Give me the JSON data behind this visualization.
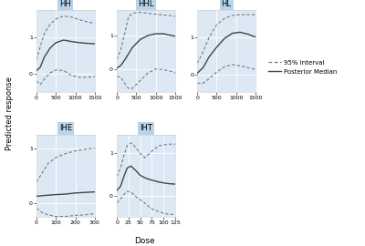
{
  "panels": [
    {
      "title": "HH",
      "xmin": 0,
      "xmax": 1500,
      "xticks": [
        0,
        500,
        1000,
        1500
      ],
      "ymin": -0.5,
      "ymax": 1.75,
      "yticks": [
        0.0,
        1.0
      ],
      "median_x": [
        0,
        100,
        200,
        350,
        500,
        700,
        900,
        1100,
        1300,
        1500
      ],
      "median_y": [
        0.08,
        0.18,
        0.45,
        0.7,
        0.85,
        0.92,
        0.88,
        0.85,
        0.83,
        0.82
      ],
      "upper_x": [
        0,
        100,
        200,
        350,
        500,
        700,
        900,
        1100,
        1300,
        1500
      ],
      "upper_y": [
        0.38,
        0.75,
        1.1,
        1.35,
        1.5,
        1.58,
        1.55,
        1.48,
        1.42,
        1.38
      ],
      "lower_x": [
        0,
        100,
        200,
        350,
        500,
        700,
        900,
        1100,
        1300,
        1500
      ],
      "lower_y": [
        -0.2,
        -0.3,
        -0.15,
        0.02,
        0.1,
        0.08,
        -0.05,
        -0.1,
        -0.1,
        -0.08
      ]
    },
    {
      "title": "HHL",
      "xmin": 0,
      "xmax": 1500,
      "xticks": [
        0,
        500,
        1000,
        1500
      ],
      "ymin": -0.65,
      "ymax": 1.75,
      "yticks": [
        0.0,
        1.0
      ],
      "median_x": [
        0,
        100,
        200,
        400,
        600,
        800,
        1000,
        1200,
        1400,
        1500
      ],
      "median_y": [
        0.05,
        0.12,
        0.28,
        0.65,
        0.88,
        1.0,
        1.05,
        1.05,
        1.0,
        0.98
      ],
      "upper_x": [
        0,
        100,
        200,
        300,
        400,
        600,
        800,
        1000,
        1200,
        1400,
        1500
      ],
      "upper_y": [
        0.3,
        0.58,
        1.05,
        1.55,
        1.65,
        1.68,
        1.65,
        1.62,
        1.6,
        1.58,
        1.56
      ],
      "lower_x": [
        0,
        100,
        200,
        300,
        400,
        600,
        800,
        1000,
        1200,
        1400,
        1500
      ],
      "lower_y": [
        -0.2,
        -0.22,
        -0.4,
        -0.55,
        -0.55,
        -0.32,
        -0.1,
        0.02,
        0.0,
        -0.05,
        -0.1
      ]
    },
    {
      "title": "HL",
      "xmin": 0,
      "xmax": 1500,
      "xticks": [
        0,
        500,
        1000,
        1500
      ],
      "ymin": -0.45,
      "ymax": 1.75,
      "yticks": [
        0.0,
        1.0
      ],
      "median_x": [
        0,
        150,
        300,
        500,
        700,
        900,
        1100,
        1300,
        1500
      ],
      "median_y": [
        0.05,
        0.2,
        0.48,
        0.75,
        0.98,
        1.12,
        1.15,
        1.1,
        1.02
      ],
      "upper_x": [
        0,
        150,
        300,
        500,
        700,
        900,
        1100,
        1300,
        1500
      ],
      "upper_y": [
        0.32,
        0.62,
        1.0,
        1.35,
        1.52,
        1.6,
        1.62,
        1.62,
        1.62
      ],
      "lower_x": [
        0,
        150,
        300,
        500,
        700,
        900,
        1100,
        1300,
        1500
      ],
      "lower_y": [
        -0.22,
        -0.22,
        -0.1,
        0.08,
        0.22,
        0.28,
        0.25,
        0.2,
        0.15
      ]
    },
    {
      "title": "IHE",
      "xmin": 0,
      "xmax": 300,
      "xticks": [
        0,
        100,
        200,
        300
      ],
      "ymin": -0.25,
      "ymax": 1.25,
      "yticks": [
        0.0,
        1.0
      ],
      "median_x": [
        0,
        30,
        60,
        100,
        150,
        200,
        250,
        300
      ],
      "median_y": [
        0.12,
        0.13,
        0.14,
        0.15,
        0.16,
        0.18,
        0.19,
        0.2
      ],
      "upper_x": [
        0,
        30,
        60,
        100,
        150,
        200,
        250,
        300
      ],
      "upper_y": [
        0.38,
        0.55,
        0.72,
        0.83,
        0.9,
        0.95,
        0.98,
        1.0
      ],
      "lower_x": [
        0,
        30,
        60,
        100,
        150,
        200,
        250,
        300
      ],
      "lower_y": [
        -0.1,
        -0.18,
        -0.22,
        -0.25,
        -0.25,
        -0.23,
        -0.22,
        -0.2
      ]
    },
    {
      "title": "IHT",
      "xmin": 0,
      "xmax": 125,
      "xticks": [
        0,
        25,
        50,
        75,
        100,
        125
      ],
      "ymin": -0.5,
      "ymax": 1.45,
      "yticks": [
        0.0,
        1.0
      ],
      "median_x": [
        0,
        8,
        15,
        22,
        30,
        40,
        50,
        60,
        70,
        80,
        90,
        100,
        112,
        125
      ],
      "median_y": [
        0.12,
        0.22,
        0.45,
        0.65,
        0.7,
        0.6,
        0.48,
        0.42,
        0.38,
        0.35,
        0.32,
        0.3,
        0.28,
        0.27
      ],
      "upper_x": [
        0,
        8,
        15,
        22,
        30,
        40,
        50,
        60,
        70,
        80,
        90,
        100,
        112,
        125
      ],
      "upper_y": [
        0.45,
        0.65,
        0.95,
        1.18,
        1.25,
        1.15,
        1.0,
        0.9,
        1.0,
        1.1,
        1.18,
        1.2,
        1.22,
        1.22
      ],
      "lower_x": [
        0,
        8,
        15,
        22,
        30,
        40,
        50,
        60,
        70,
        80,
        90,
        100,
        112,
        125
      ],
      "lower_y": [
        -0.18,
        -0.08,
        0.02,
        0.1,
        0.08,
        -0.02,
        -0.1,
        -0.18,
        -0.28,
        -0.35,
        -0.38,
        -0.42,
        -0.45,
        -0.45
      ]
    }
  ],
  "ylabel": "Predicted response",
  "xlabel": "Dose",
  "panel_bg": "#dce9f5",
  "title_bg": "#b8d4ea",
  "grid_color": "#ffffff",
  "line_color": "#444444",
  "dashed_color": "#777777",
  "legend_dashed": "95% Interval",
  "legend_solid": "Posterior Median"
}
